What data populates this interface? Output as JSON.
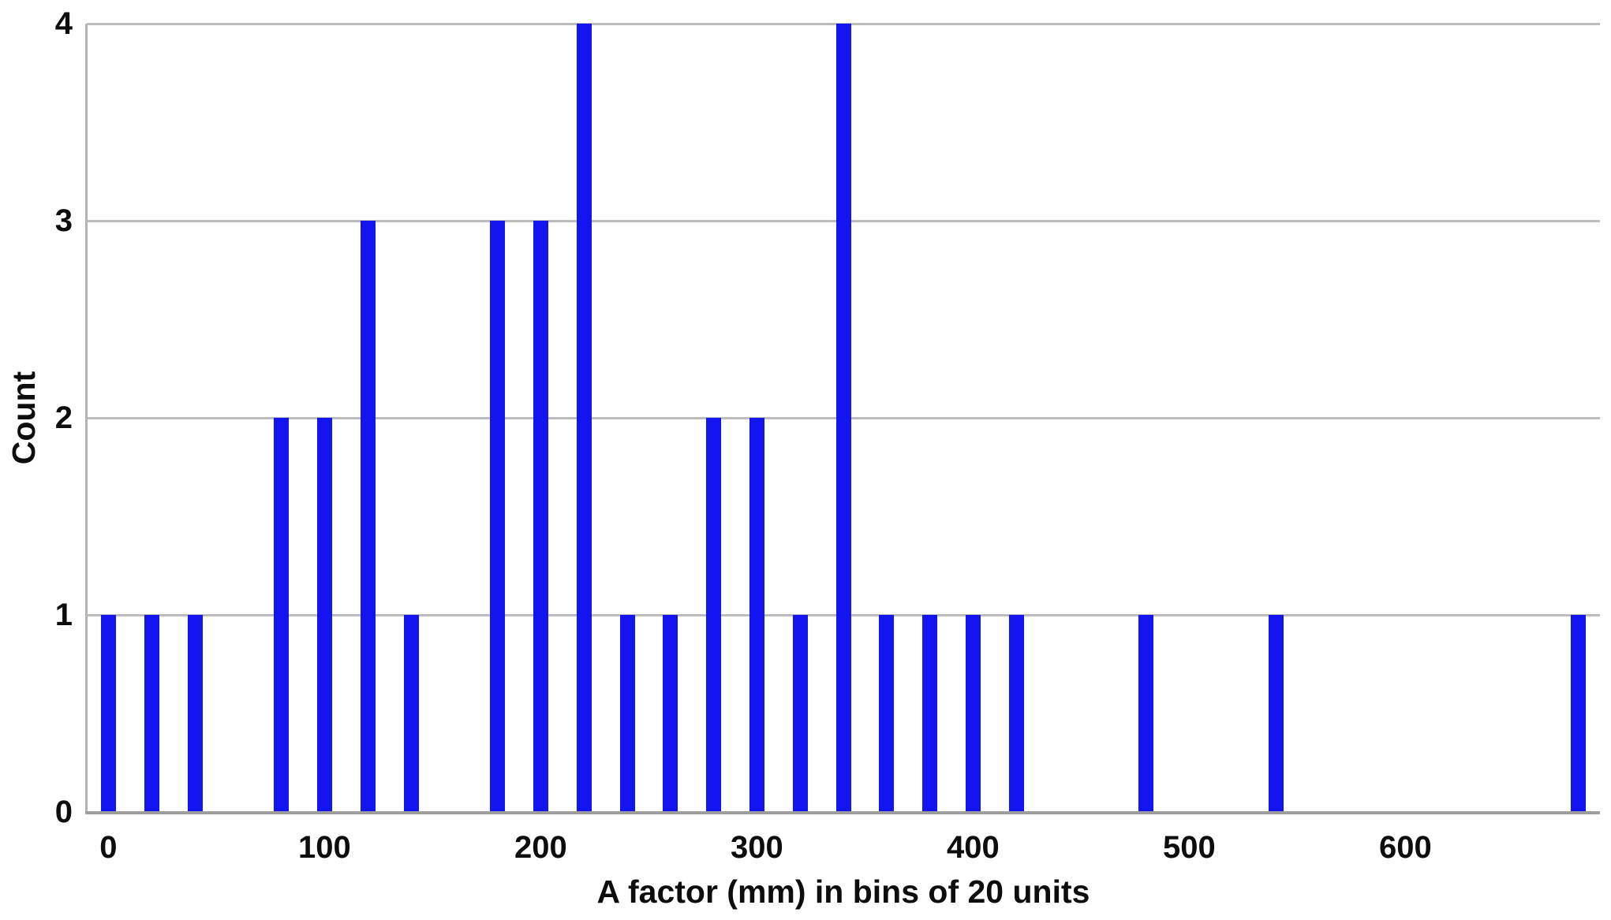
{
  "chart_data": {
    "type": "bar",
    "title": "",
    "xlabel": "A factor (mm) in bins of 20 units",
    "ylabel": "Count",
    "x": [
      0,
      20,
      40,
      80,
      100,
      120,
      140,
      180,
      200,
      220,
      240,
      260,
      280,
      300,
      320,
      340,
      360,
      380,
      400,
      420,
      480,
      540,
      680
    ],
    "values": [
      1,
      1,
      1,
      2,
      2,
      3,
      1,
      3,
      3,
      4,
      1,
      1,
      2,
      2,
      1,
      4,
      1,
      1,
      1,
      1,
      1,
      1,
      1
    ],
    "bin_width": 20,
    "xlim": [
      -10,
      690
    ],
    "ylim": [
      0,
      4
    ],
    "x_ticks": [
      0,
      100,
      200,
      300,
      400,
      500,
      600
    ],
    "y_ticks": [
      0,
      1,
      2,
      3,
      4
    ],
    "grid": "horizontal-on",
    "legend": "none",
    "colors": {
      "bar": "#1414f0",
      "gridline": "#bdbdbd",
      "axis_line": "#9e9e9e",
      "text": "#0d0d0d",
      "background": "#ffffff"
    }
  }
}
